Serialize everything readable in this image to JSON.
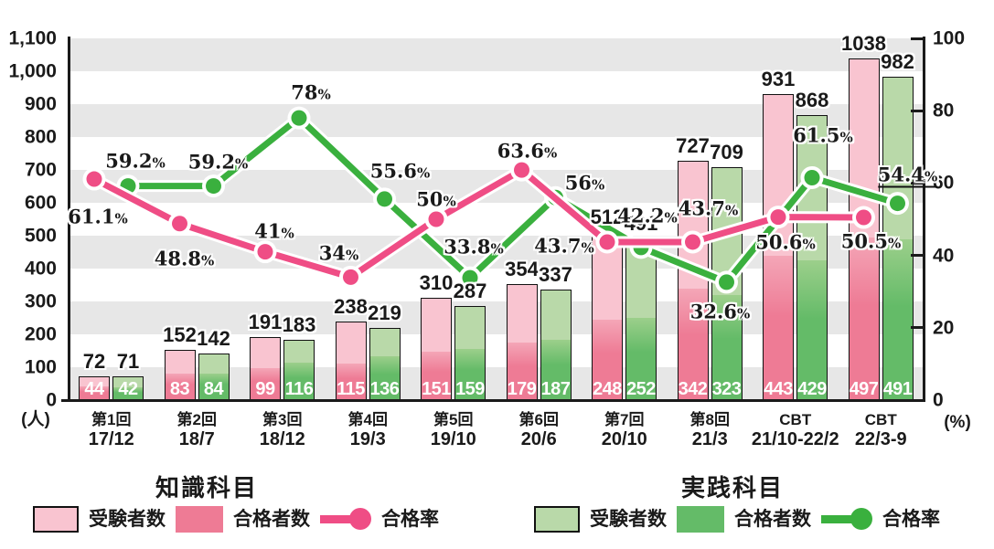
{
  "chart_data": {
    "type": "bar+line",
    "title": "",
    "categories": [
      {
        "line1": "第1回",
        "line2": "17/12"
      },
      {
        "line1": "第2回",
        "line2": "18/7"
      },
      {
        "line1": "第3回",
        "line2": "18/12"
      },
      {
        "line1": "第4回",
        "line2": "19/3"
      },
      {
        "line1": "第5回",
        "line2": "19/10"
      },
      {
        "line1": "第6回",
        "line2": "20/6"
      },
      {
        "line1": "第7回",
        "line2": "20/10"
      },
      {
        "line1": "第8回",
        "line2": "21/3"
      },
      {
        "line1": "CBT",
        "line2": "21/10-22/2"
      },
      {
        "line1": "CBT",
        "line2": "22/3-9"
      }
    ],
    "left_axis": {
      "unit": "(人)",
      "max": 1100,
      "min": 0,
      "step": 100,
      "ticks": [
        "1,100",
        "1,000",
        "900",
        "800",
        "700",
        "600",
        "500",
        "400",
        "300",
        "200",
        "100",
        "0"
      ]
    },
    "right_axis": {
      "unit": "(%)",
      "max": 100,
      "min": 0,
      "step": 20,
      "ticks": [
        "100",
        "80",
        "60",
        "40",
        "20",
        "0"
      ]
    },
    "series": [
      {
        "id": "knowledge",
        "section_title": "知識科目",
        "examinees": {
          "label": "受験者数",
          "values": [
            72,
            152,
            191,
            238,
            310,
            354,
            512,
            727,
            931,
            1038
          ]
        },
        "passers": {
          "label": "合格者数",
          "values": [
            44,
            83,
            99,
            115,
            151,
            179,
            248,
            342,
            443,
            497
          ]
        },
        "pass_rate": {
          "label": "合格率",
          "values": [
            61.1,
            48.8,
            41,
            34,
            50,
            63.6,
            43.7,
            43.7,
            50.6,
            50.5
          ],
          "labels": [
            "61.1%",
            "48.8%",
            "41%",
            "34%",
            "50%",
            "63.6%",
            "43.7%",
            "43.7%",
            "50.6%",
            "50.5%"
          ]
        },
        "colors": {
          "examinees": "#f9c4d0",
          "passers": "#ee7b95",
          "passers_light": "#f4a6b7",
          "rate": "#ef4d85"
        }
      },
      {
        "id": "practical",
        "section_title": "実践科目",
        "examinees": {
          "label": "受験者数",
          "values": [
            71,
            142,
            183,
            219,
            287,
            337,
            491,
            709,
            868,
            982
          ]
        },
        "passers": {
          "label": "合格者数",
          "values": [
            42,
            84,
            116,
            136,
            159,
            187,
            252,
            323,
            429,
            491
          ]
        },
        "pass_rate": {
          "label": "合格率",
          "values": [
            59.2,
            59.2,
            78,
            55.6,
            33.8,
            56,
            42.2,
            32.6,
            61.5,
            54.4
          ],
          "labels": [
            "59.2%",
            "59.2%",
            "78%",
            "55.6%",
            "33.8%",
            "56%",
            "42.2%",
            "32.6%",
            "61.5%",
            "54.4%"
          ]
        },
        "colors": {
          "examinees": "#b9d9a9",
          "passers": "#64bb68",
          "passers_light": "#9ccf8b",
          "rate": "#3ab03e"
        }
      }
    ],
    "colors": {
      "band": "#e7e7e7",
      "axis": "#1a1a1a"
    },
    "layout_hints": {
      "grid": "horizontal striped bands",
      "legend_position": "bottom",
      "bar_grouping": "pair per category, passers overlaid inside examinees bar"
    }
  }
}
